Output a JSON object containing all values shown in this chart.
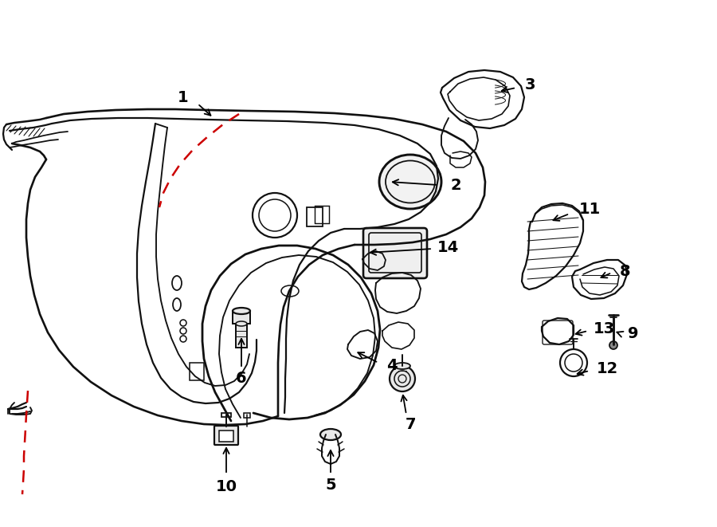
{
  "background_color": "#ffffff",
  "line_color": "#111111",
  "red_dash_color": "#cc0000",
  "figsize": [
    9.0,
    6.61
  ],
  "dpi": 100
}
